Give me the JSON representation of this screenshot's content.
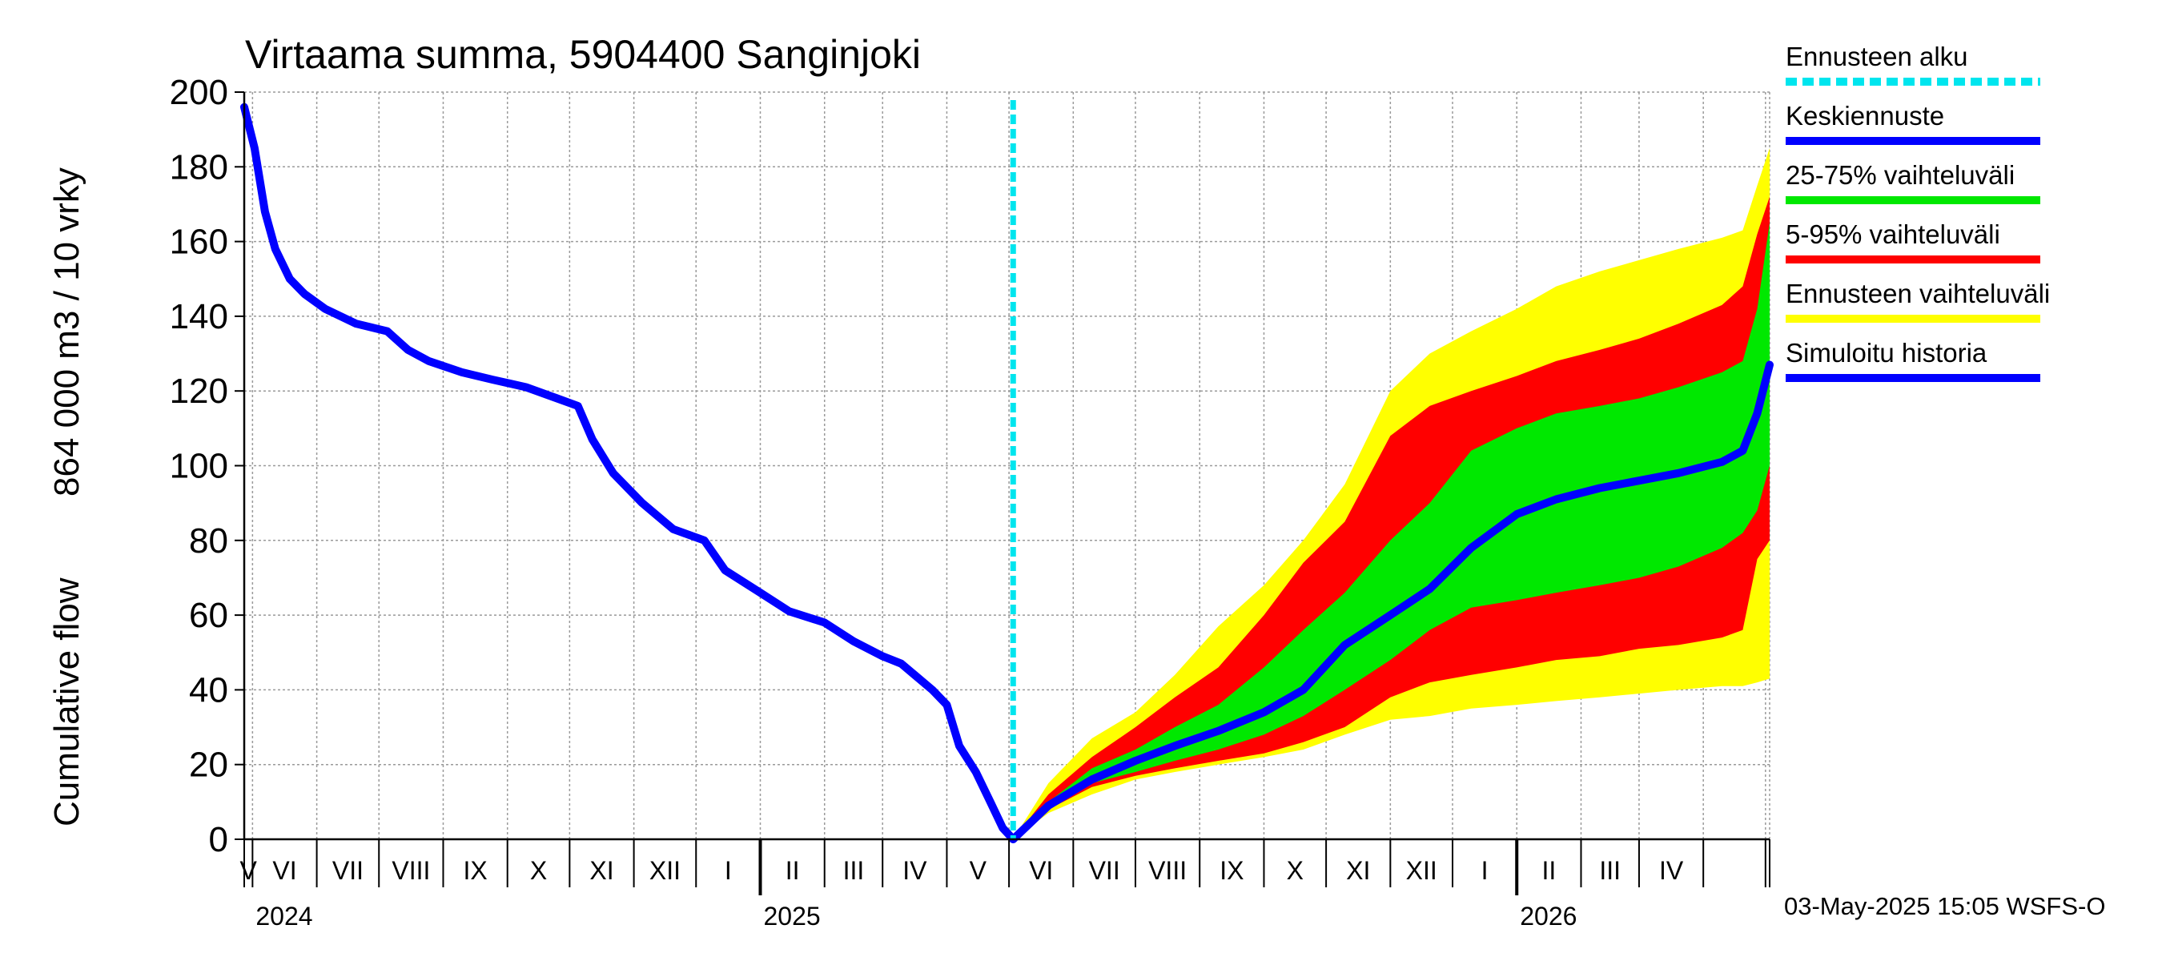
{
  "chart_data": {
    "type": "area",
    "title": "Virtaama summa, 5904400 Sanginjoki",
    "ylabel_left": "Cumulative flow",
    "ylabel_right": "864 000 m3 / 10 vrky",
    "ylim": [
      0,
      200
    ],
    "yticks": [
      0,
      20,
      40,
      60,
      80,
      100,
      120,
      140,
      160,
      180,
      200
    ],
    "x_range": [
      "2024-04-27",
      "2026-05-03"
    ],
    "months": [
      "V",
      "VI",
      "VII",
      "VIII",
      "IX",
      "X",
      "XI",
      "XII",
      "I",
      "II",
      "III",
      "IV",
      "V",
      "VI",
      "VII",
      "VIII",
      "IX",
      "X",
      "XI",
      "XII",
      "I",
      "II",
      "III",
      "IV"
    ],
    "years": [
      {
        "label": "2024",
        "date": "2024-05-01"
      },
      {
        "label": "2025",
        "date": "2025-01-01"
      },
      {
        "label": "2026",
        "date": "2026-01-01"
      }
    ],
    "forecast_start": "2025-05-03",
    "grid": true,
    "legend_position": "right",
    "legend": [
      {
        "label": "Ennusteen alku",
        "color": "#00e5ee",
        "style": "dashed"
      },
      {
        "label": "Keskiennuste",
        "color": "#0000ff",
        "style": "solid"
      },
      {
        "label": "25-75% vaihteluväli",
        "color": "#00e800",
        "style": "solid"
      },
      {
        "label": "5-95% vaihteluväli",
        "color": "#ff0000",
        "style": "solid"
      },
      {
        "label": "Ennusteen vaihteluväli",
        "color": "#ffff00",
        "style": "solid"
      },
      {
        "label": "Simuloitu historia",
        "color": "#0000ff",
        "style": "solid"
      }
    ],
    "series": [
      {
        "name": "Simuloitu historia",
        "color": "#0000ff",
        "x": [
          "2024-04-27",
          "2024-05-02",
          "2024-05-07",
          "2024-05-12",
          "2024-05-19",
          "2024-05-26",
          "2024-06-05",
          "2024-06-20",
          "2024-07-05",
          "2024-07-15",
          "2024-07-25",
          "2024-08-10",
          "2024-08-25",
          "2024-09-10",
          "2024-09-25",
          "2024-10-05",
          "2024-10-12",
          "2024-10-22",
          "2024-11-05",
          "2024-11-20",
          "2024-12-05",
          "2024-12-15",
          "2025-01-01",
          "2025-01-15",
          "2025-02-01",
          "2025-02-15",
          "2025-03-01",
          "2025-03-10",
          "2025-03-25",
          "2025-04-01",
          "2025-04-07",
          "2025-04-15",
          "2025-04-22",
          "2025-04-28",
          "2025-05-03"
        ],
        "values": [
          196,
          185,
          168,
          158,
          150,
          146,
          142,
          138,
          136,
          131,
          128,
          125,
          123,
          121,
          118,
          116,
          107,
          98,
          90,
          83,
          80,
          72,
          66,
          61,
          58,
          53,
          49,
          47,
          40,
          36,
          25,
          18,
          10,
          3,
          0
        ]
      },
      {
        "name": "Keskiennuste",
        "color": "#0000ff",
        "x": [
          "2025-05-03",
          "2025-05-20",
          "2025-06-10",
          "2025-07-01",
          "2025-07-20",
          "2025-08-10",
          "2025-09-01",
          "2025-09-20",
          "2025-10-10",
          "2025-11-01",
          "2025-11-20",
          "2025-12-10",
          "2026-01-01",
          "2026-01-20",
          "2026-02-10",
          "2026-03-01",
          "2026-03-20",
          "2026-04-10",
          "2026-04-20",
          "2026-04-27",
          "2026-05-03"
        ],
        "values": [
          0,
          9,
          16,
          21,
          25,
          29,
          34,
          40,
          52,
          60,
          67,
          78,
          87,
          91,
          94,
          96,
          98,
          101,
          104,
          114,
          127
        ]
      },
      {
        "name": "Ennusteen vaihteluväli",
        "color": "#ffff00",
        "x": [
          "2025-05-03",
          "2025-05-20",
          "2025-06-10",
          "2025-07-01",
          "2025-07-20",
          "2025-08-10",
          "2025-09-01",
          "2025-09-20",
          "2025-10-10",
          "2025-11-01",
          "2025-11-20",
          "2025-12-10",
          "2026-01-01",
          "2026-01-20",
          "2026-02-10",
          "2026-03-01",
          "2026-03-20",
          "2026-04-10",
          "2026-04-20",
          "2026-04-27",
          "2026-05-03"
        ],
        "upper": [
          0,
          15,
          27,
          34,
          44,
          57,
          68,
          80,
          95,
          120,
          130,
          136,
          142,
          148,
          152,
          155,
          158,
          161,
          163,
          175,
          185
        ],
        "lower": [
          0,
          7,
          12,
          16,
          18,
          20,
          22,
          24,
          28,
          32,
          33,
          35,
          36,
          37,
          38,
          39,
          40,
          41,
          41,
          42,
          43
        ]
      },
      {
        "name": "5-95% vaihteluväli",
        "color": "#ff0000",
        "x": [
          "2025-05-03",
          "2025-05-20",
          "2025-06-10",
          "2025-07-01",
          "2025-07-20",
          "2025-08-10",
          "2025-09-01",
          "2025-09-20",
          "2025-10-10",
          "2025-11-01",
          "2025-11-20",
          "2025-12-10",
          "2026-01-01",
          "2026-01-20",
          "2026-02-10",
          "2026-03-01",
          "2026-03-20",
          "2026-04-10",
          "2026-04-20",
          "2026-04-27",
          "2026-05-03"
        ],
        "upper": [
          0,
          12,
          22,
          30,
          38,
          46,
          60,
          74,
          85,
          108,
          116,
          120,
          124,
          128,
          131,
          134,
          138,
          143,
          148,
          162,
          172
        ],
        "lower": [
          0,
          8,
          14,
          17,
          19,
          21,
          23,
          26,
          30,
          38,
          42,
          44,
          46,
          48,
          49,
          51,
          52,
          54,
          56,
          75,
          80
        ]
      },
      {
        "name": "25-75% vaihteluväli",
        "color": "#00e800",
        "x": [
          "2025-05-03",
          "2025-05-20",
          "2025-06-10",
          "2025-07-01",
          "2025-07-20",
          "2025-08-10",
          "2025-09-01",
          "2025-09-20",
          "2025-10-10",
          "2025-11-01",
          "2025-11-20",
          "2025-12-10",
          "2026-01-01",
          "2026-01-20",
          "2026-02-10",
          "2026-03-01",
          "2026-03-20",
          "2026-04-10",
          "2026-04-20",
          "2026-04-27",
          "2026-05-03"
        ],
        "upper": [
          0,
          10,
          19,
          24,
          30,
          36,
          46,
          56,
          66,
          80,
          90,
          104,
          110,
          114,
          116,
          118,
          121,
          125,
          128,
          142,
          165
        ],
        "lower": [
          0,
          9,
          15,
          18,
          21,
          24,
          28,
          33,
          40,
          48,
          56,
          62,
          64,
          66,
          68,
          70,
          73,
          78,
          82,
          88,
          100
        ]
      }
    ],
    "timestamp": "03-May-2025 15:05 WSFS-O"
  }
}
